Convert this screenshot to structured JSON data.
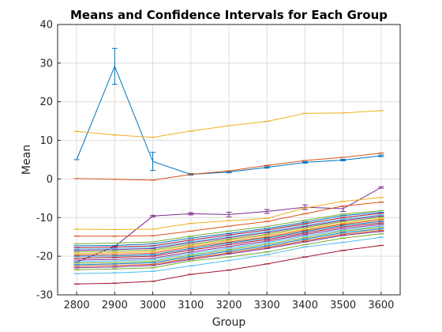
{
  "chart_data": {
    "type": "line",
    "title": "Means and Confidence Intervals for Each Group",
    "xlabel": "Group",
    "ylabel": "Mean",
    "xlim": [
      2750,
      3650
    ],
    "ylim": [
      -30,
      40
    ],
    "x": [
      2800,
      2900,
      3000,
      3100,
      3200,
      3300,
      3400,
      3500,
      3600
    ],
    "x_ticks": [
      "2800",
      "2900",
      "3000",
      "3100",
      "3200",
      "3300",
      "3400",
      "3500",
      "3600"
    ],
    "y_ticks": [
      "-30",
      "-20",
      "-10",
      "0",
      "10",
      "20",
      "30",
      "40"
    ],
    "grid": true,
    "legend": "none",
    "series": [
      {
        "color": "#0072BD",
        "values": [
          5.0,
          29.2,
          4.5,
          1.2,
          1.8,
          3.0,
          4.3,
          4.9,
          6.0
        ],
        "errors": [
          [
            5.0,
            5.0
          ],
          [
            24.5,
            33.8
          ],
          [
            2.2,
            6.9
          ],
          [
            1.0,
            1.4
          ],
          [
            1.6,
            2.0
          ],
          [
            2.8,
            3.2
          ],
          [
            4.1,
            4.5
          ],
          [
            4.7,
            5.1
          ],
          [
            5.8,
            6.2
          ]
        ]
      },
      {
        "color": "#D95319",
        "values": [
          0.1,
          -0.1,
          -0.3,
          1.2,
          2.1,
          3.5,
          4.8,
          5.6,
          6.7
        ]
      },
      {
        "color": "#EDB120",
        "values": [
          12.3,
          11.4,
          10.8,
          12.4,
          13.8,
          14.9,
          17.0,
          17.1,
          17.7
        ]
      },
      {
        "color": "#7E2F8E",
        "values": [
          -21.5,
          -17.5,
          -9.6,
          -9.0,
          -9.2,
          -8.4,
          -7.3,
          -7.7,
          -2.2
        ],
        "errors": [
          [
            -21.5,
            -21.5
          ],
          [
            -17.7,
            -17.3
          ],
          [
            -9.8,
            -9.4
          ],
          [
            -9.3,
            -8.7
          ],
          [
            -9.8,
            -8.6
          ],
          [
            -8.9,
            -7.9
          ],
          [
            -7.9,
            -6.7
          ],
          [
            -8.4,
            -7.0
          ],
          [
            -2.4,
            -2.0
          ]
        ]
      },
      {
        "color": "#EDB120",
        "values": [
          -13.0,
          -13.1,
          -13.0,
          -11.5,
          -10.8,
          -10.2,
          -7.5,
          -5.8,
          -4.8
        ]
      },
      {
        "color": "#D95319",
        "values": [
          -14.8,
          -14.8,
          -14.7,
          -13.5,
          -12.2,
          -11.0,
          -9.0,
          -7.0,
          -6.0
        ]
      },
      {
        "color": "#77AC30",
        "values": [
          -16.8,
          -16.6,
          -16.3,
          -14.8,
          -13.5,
          -12.3,
          -10.7,
          -9.1,
          -8.2
        ]
      },
      {
        "color": "#0072BD",
        "values": [
          -17.3,
          -17.2,
          -16.8,
          -15.3,
          -14.1,
          -12.8,
          -11.2,
          -9.5,
          -8.6
        ]
      },
      {
        "color": "#A2142F",
        "values": [
          -17.8,
          -17.6,
          -17.3,
          -15.8,
          -14.5,
          -13.2,
          -11.6,
          -10.0,
          -8.9
        ]
      },
      {
        "color": "#4DBEEE",
        "values": [
          -18.2,
          -18.0,
          -17.7,
          -16.2,
          -14.9,
          -13.6,
          -12.0,
          -10.4,
          -9.3
        ]
      },
      {
        "color": "#7E2F8E",
        "values": [
          -18.5,
          -18.3,
          -18.0,
          -16.5,
          -15.2,
          -13.9,
          -12.3,
          -10.7,
          -9.6
        ]
      },
      {
        "color": "#77AC30",
        "values": [
          -18.9,
          -18.7,
          -18.4,
          -16.9,
          -15.6,
          -14.3,
          -12.6,
          -11.0,
          -9.9
        ]
      },
      {
        "color": "#EDB120",
        "values": [
          -19.3,
          -19.1,
          -18.8,
          -17.2,
          -15.9,
          -14.6,
          -13.0,
          -11.4,
          -10.3
        ]
      },
      {
        "color": "#D95319",
        "values": [
          -19.7,
          -19.5,
          -19.2,
          -17.6,
          -16.3,
          -15.0,
          -13.3,
          -11.7,
          -10.6
        ]
      },
      {
        "color": "#0072BD",
        "values": [
          -20.0,
          -19.9,
          -19.6,
          -18.0,
          -16.6,
          -15.3,
          -13.6,
          -12.0,
          -11.0
        ]
      },
      {
        "color": "#A2142F",
        "values": [
          -20.5,
          -20.3,
          -20.0,
          -18.4,
          -17.0,
          -15.7,
          -14.0,
          -12.4,
          -11.4
        ]
      },
      {
        "color": "#7E2F8E",
        "values": [
          -21.0,
          -20.8,
          -20.5,
          -18.9,
          -17.5,
          -16.1,
          -14.4,
          -12.8,
          -11.8
        ]
      },
      {
        "color": "#4DBEEE",
        "values": [
          -21.4,
          -21.2,
          -20.9,
          -19.3,
          -17.9,
          -16.5,
          -14.8,
          -13.2,
          -12.2
        ]
      },
      {
        "color": "#77AC30",
        "values": [
          -21.8,
          -21.6,
          -21.3,
          -19.7,
          -18.3,
          -16.9,
          -15.2,
          -13.5,
          -12.5
        ]
      },
      {
        "color": "#0072BD",
        "values": [
          -22.2,
          -22.0,
          -21.7,
          -20.1,
          -18.7,
          -17.3,
          -15.6,
          -13.9,
          -12.9
        ]
      },
      {
        "color": "#D95319",
        "values": [
          -22.6,
          -22.4,
          -22.1,
          -20.5,
          -19.1,
          -17.7,
          -16.0,
          -14.3,
          -13.3
        ]
      },
      {
        "color": "#7E2F8E",
        "values": [
          -23.0,
          -22.8,
          -22.4,
          -20.8,
          -19.4,
          -18.0,
          -16.3,
          -14.6,
          -13.6
        ]
      },
      {
        "color": "#77AC30",
        "values": [
          -23.5,
          -23.3,
          -23.0,
          -21.2,
          -20.2,
          -18.9,
          -17.0,
          -15.3,
          -14.2
        ]
      },
      {
        "color": "#4DBEEE",
        "values": [
          -24.5,
          -24.3,
          -23.9,
          -22.5,
          -21.1,
          -19.6,
          -17.6,
          -16.4,
          -15.1
        ]
      },
      {
        "color": "#A2142F",
        "values": [
          -27.2,
          -27.0,
          -26.5,
          -24.7,
          -23.6,
          -22.0,
          -20.2,
          -18.5,
          -17.2
        ]
      }
    ]
  }
}
